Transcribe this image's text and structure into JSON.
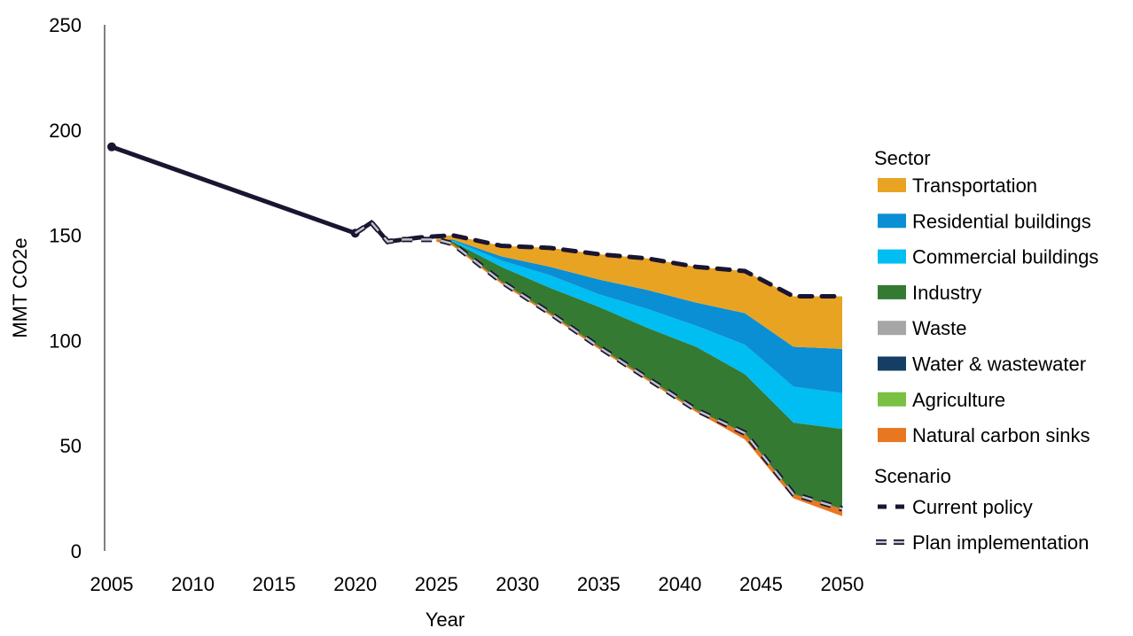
{
  "chart_data": {
    "type": "area",
    "title": "",
    "xlabel": "Year",
    "ylabel": "MMT CO2e",
    "xlim": [
      2005,
      2050
    ],
    "ylim": [
      0,
      250
    ],
    "x_ticks": [
      2005,
      2010,
      2015,
      2020,
      2025,
      2030,
      2035,
      2040,
      2045,
      2050
    ],
    "y_ticks": [
      0,
      50,
      100,
      150,
      200,
      250
    ],
    "grid": false,
    "legend_position": "right",
    "legend_sector_title": "Sector",
    "legend_scenario_title": "Scenario",
    "historical": {
      "x": [
        2005,
        2020
      ],
      "y": [
        192,
        151
      ]
    },
    "stack_years": [
      2025,
      2026,
      2029,
      2032,
      2035,
      2038,
      2041,
      2044,
      2047,
      2050
    ],
    "sectors": [
      {
        "name": "Transportation",
        "color": "#E8A323",
        "values": [
          1.5,
          2,
          5,
          9,
          12,
          15,
          17,
          20,
          24,
          25
        ]
      },
      {
        "name": "Residential buildings",
        "color": "#0A8FD4",
        "values": [
          0,
          0.5,
          2,
          4,
          7,
          9,
          11,
          15,
          19,
          21
        ]
      },
      {
        "name": "Commercial buildings",
        "color": "#00BDF2",
        "values": [
          0,
          0.5,
          3,
          6,
          6,
          9,
          10,
          14,
          17,
          17
        ]
      },
      {
        "name": "Industry",
        "color": "#357A32",
        "values": [
          0,
          1,
          7,
          12,
          19,
          24,
          30,
          28,
          34,
          38
        ]
      },
      {
        "name": "Waste",
        "color": "#A6A6A6",
        "values": [
          0,
          0,
          0,
          0,
          0,
          0,
          0,
          0,
          0,
          0
        ]
      },
      {
        "name": "Water & wastewater",
        "color": "#153E64",
        "values": [
          0,
          0,
          0,
          0,
          0,
          0,
          0,
          0,
          0,
          0
        ]
      },
      {
        "name": "Agriculture",
        "color": "#7AC143",
        "values": [
          0,
          0,
          0,
          0,
          0,
          0,
          0,
          0,
          0,
          0
        ]
      },
      {
        "name": "Natural carbon sinks",
        "color": "#E87722",
        "values": [
          1,
          1,
          1,
          1,
          1,
          1,
          1,
          3,
          2,
          3.5
        ]
      }
    ],
    "scenarios": [
      {
        "name": "Current policy",
        "color": "#1A1530",
        "x": [
          2022,
          2023,
          2024,
          2025,
          2026,
          2029,
          2032,
          2035,
          2038,
          2041,
          2044,
          2047,
          2050
        ],
        "y": [
          147,
          148,
          149,
          149.5,
          150,
          145,
          144,
          141,
          139,
          135,
          133,
          121,
          121
        ]
      },
      {
        "name": "Plan implementation",
        "color": "#1A1530",
        "fill": "#BFC3CC",
        "x": [
          2020,
          2021,
          2022,
          2023,
          2024,
          2025,
          2026,
          2029,
          2032,
          2035,
          2038,
          2041,
          2044,
          2047,
          2050
        ],
        "y": [
          151,
          156,
          147,
          148,
          148,
          148,
          146,
          128,
          113,
          97,
          82,
          67,
          56,
          27,
          20
        ]
      }
    ]
  }
}
